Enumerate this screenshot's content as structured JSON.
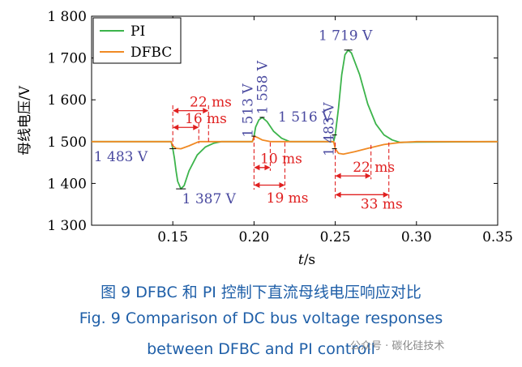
{
  "chart_data": {
    "type": "line",
    "ylabel": "母线电压/V",
    "xlabel": "t/s",
    "xlim": [
      0.1,
      0.35
    ],
    "ylim": [
      1300,
      1800
    ],
    "x_ticks": [
      0.15,
      0.2,
      0.25,
      0.3,
      0.35
    ],
    "x_tick_labels": [
      "0.15",
      "0.20",
      "0.25",
      "0.30",
      "0.35"
    ],
    "y_ticks": [
      1300,
      1400,
      1500,
      1600,
      1700,
      1800
    ],
    "y_tick_labels": [
      "1 300",
      "1 400",
      "1 500",
      "1 600",
      "1 700",
      "1 800"
    ],
    "legend_position": "top-left",
    "series": [
      {
        "name": "PI",
        "color": "#3cb44b",
        "points": [
          [
            0.1,
            1500
          ],
          [
            0.149,
            1500
          ],
          [
            0.15,
            1483
          ],
          [
            0.151,
            1460
          ],
          [
            0.152,
            1430
          ],
          [
            0.153,
            1405
          ],
          [
            0.155,
            1387
          ],
          [
            0.157,
            1395
          ],
          [
            0.16,
            1430
          ],
          [
            0.165,
            1468
          ],
          [
            0.17,
            1487
          ],
          [
            0.175,
            1496
          ],
          [
            0.18,
            1500
          ],
          [
            0.199,
            1500
          ],
          [
            0.2,
            1513
          ],
          [
            0.201,
            1535
          ],
          [
            0.203,
            1552
          ],
          [
            0.205,
            1558
          ],
          [
            0.208,
            1548
          ],
          [
            0.212,
            1525
          ],
          [
            0.217,
            1508
          ],
          [
            0.222,
            1500
          ],
          [
            0.249,
            1500
          ],
          [
            0.25,
            1516
          ],
          [
            0.252,
            1580
          ],
          [
            0.254,
            1660
          ],
          [
            0.256,
            1708
          ],
          [
            0.258,
            1719
          ],
          [
            0.26,
            1712
          ],
          [
            0.265,
            1660
          ],
          [
            0.27,
            1590
          ],
          [
            0.275,
            1542
          ],
          [
            0.28,
            1516
          ],
          [
            0.285,
            1504
          ],
          [
            0.29,
            1498
          ],
          [
            0.3,
            1499
          ],
          [
            0.35,
            1500
          ]
        ]
      },
      {
        "name": "DFBC",
        "color": "#f08a24",
        "points": [
          [
            0.1,
            1500
          ],
          [
            0.149,
            1500
          ],
          [
            0.15,
            1490
          ],
          [
            0.152,
            1484
          ],
          [
            0.155,
            1483
          ],
          [
            0.16,
            1490
          ],
          [
            0.166,
            1500
          ],
          [
            0.199,
            1500
          ],
          [
            0.2,
            1513
          ],
          [
            0.202,
            1510
          ],
          [
            0.205,
            1504
          ],
          [
            0.21,
            1500
          ],
          [
            0.249,
            1500
          ],
          [
            0.25,
            1483
          ],
          [
            0.252,
            1472
          ],
          [
            0.255,
            1470
          ],
          [
            0.262,
            1476
          ],
          [
            0.27,
            1484
          ],
          [
            0.28,
            1493
          ],
          [
            0.29,
            1498
          ],
          [
            0.3,
            1500
          ],
          [
            0.35,
            1500
          ]
        ]
      }
    ],
    "value_labels": [
      {
        "text": "1 483 V",
        "x": 0.15,
        "y": 1483
      },
      {
        "text": "1 387 V",
        "x": 0.155,
        "y": 1387
      },
      {
        "text": "1 513 V",
        "x": 0.2,
        "y": 1513
      },
      {
        "text": "1 558 V",
        "x": 0.205,
        "y": 1558
      },
      {
        "text": "1 516 V",
        "x": 0.25,
        "y": 1516
      },
      {
        "text": "1 719 V",
        "x": 0.258,
        "y": 1719
      },
      {
        "text": "1 483 V",
        "x": 0.25,
        "y": 1483
      }
    ],
    "duration_annotations": [
      {
        "text": "22 ms",
        "from": 0.15,
        "to": 0.172
      },
      {
        "text": "16 ms",
        "from": 0.15,
        "to": 0.166
      },
      {
        "text": "10 ms",
        "from": 0.2,
        "to": 0.21
      },
      {
        "text": "19 ms",
        "from": 0.2,
        "to": 0.219
      },
      {
        "text": "22 ms",
        "from": 0.25,
        "to": 0.272
      },
      {
        "text": "33 ms",
        "from": 0.25,
        "to": 0.283
      }
    ],
    "value_label_color": "#4a4aa0",
    "duration_color": "#e02020"
  },
  "caption": {
    "cn": "图 9    DFBC 和 PI 控制下直流母线电压响应对比",
    "en_line1": "Fig. 9    Comparison of DC bus voltage responses",
    "en_line2": "between DFBC and PI controll"
  },
  "watermark": "公众号 · 碳化硅技术"
}
